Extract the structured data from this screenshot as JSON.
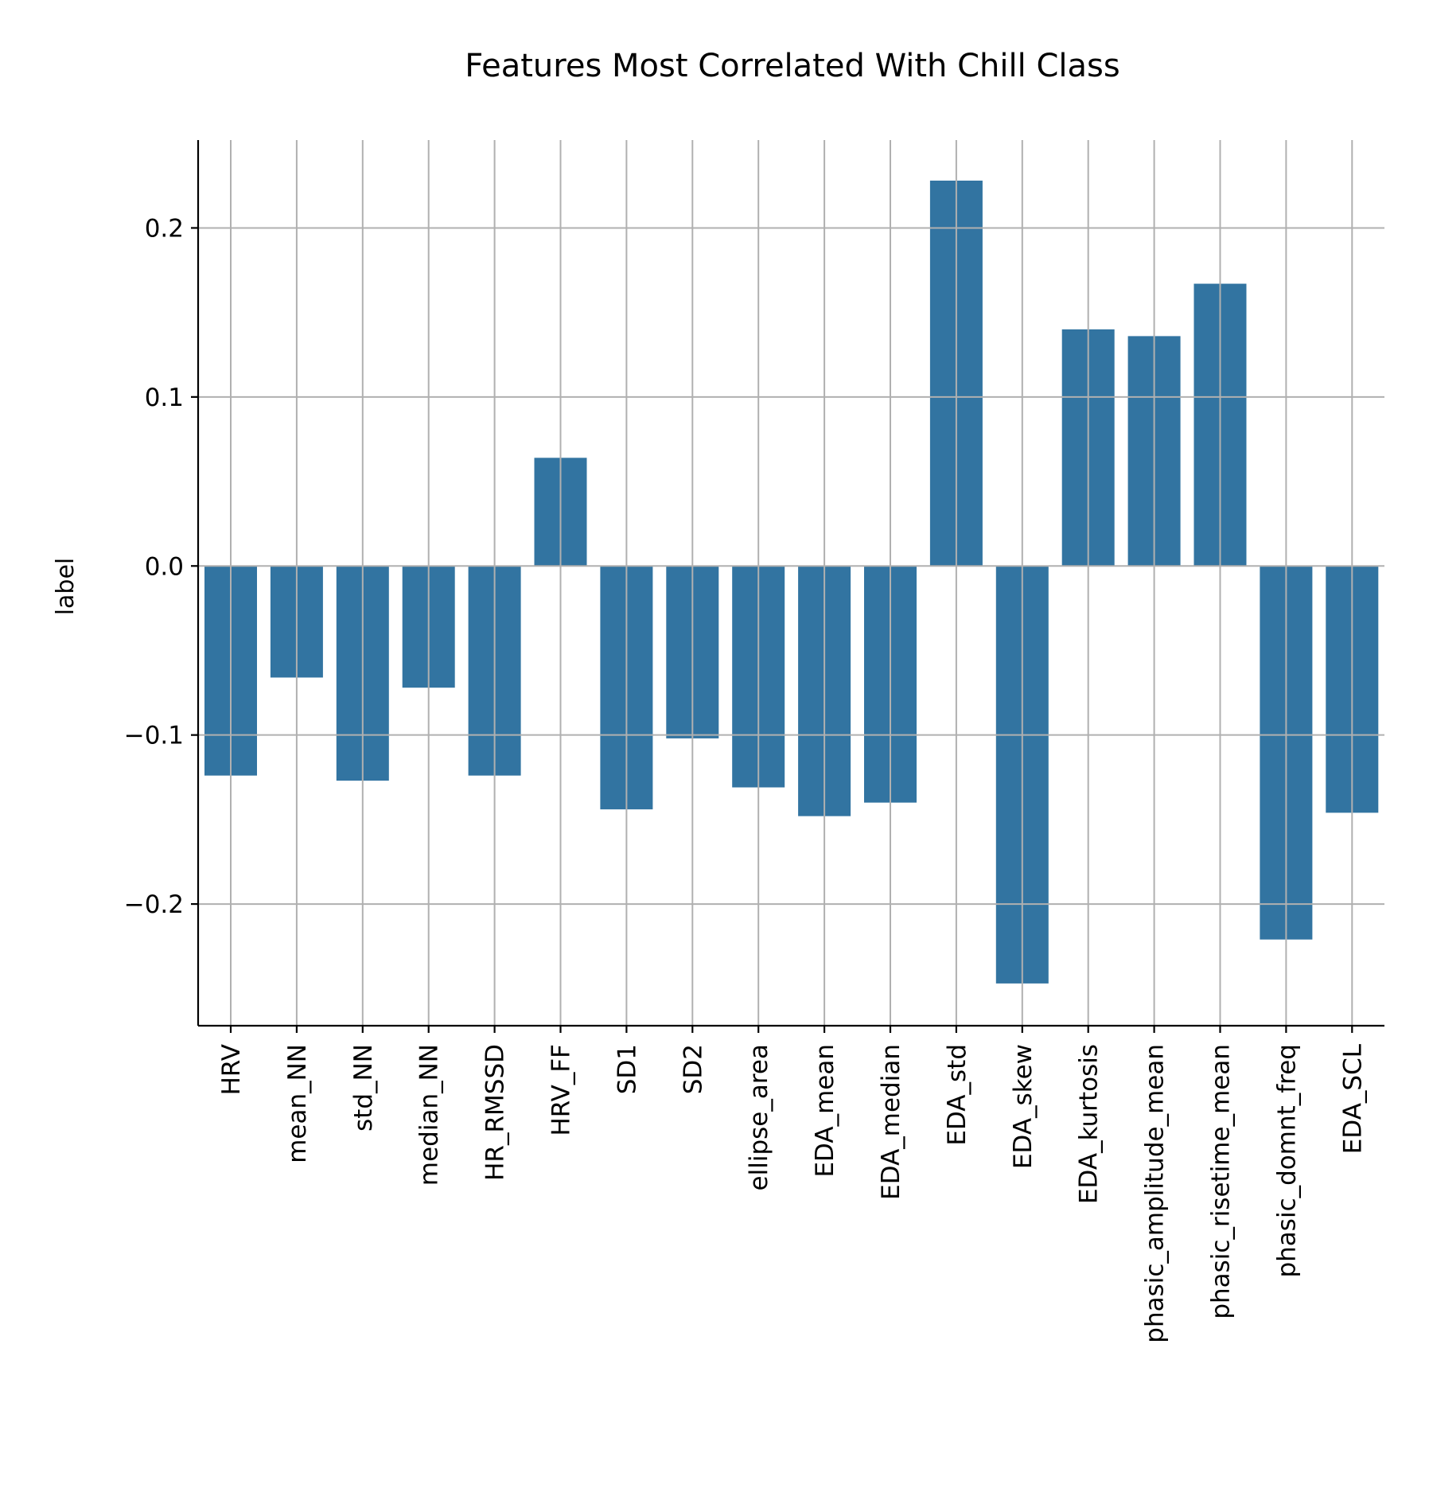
{
  "chart_data": {
    "type": "bar",
    "title": "Features Most Correlated With Chill Class",
    "xlabel": "",
    "ylabel": "label",
    "categories": [
      "HRV",
      "mean_NN",
      "std_NN",
      "median_NN",
      "HR_RMSSD",
      "HRV_FF",
      "SD1",
      "SD2",
      "ellipse_area",
      "EDA_mean",
      "EDA_median",
      "EDA_std",
      "EDA_skew",
      "EDA_kurtosis",
      "phasic_amplitude_mean",
      "phasic_risetime_mean",
      "phasic_domnt_freq",
      "EDA_SCL"
    ],
    "values": [
      -0.124,
      -0.066,
      -0.127,
      -0.072,
      -0.124,
      0.064,
      -0.144,
      -0.102,
      -0.131,
      -0.148,
      -0.14,
      0.228,
      -0.247,
      0.14,
      0.136,
      0.167,
      -0.221,
      -0.146
    ],
    "ylim": [
      -0.272,
      0.252
    ],
    "yticks": [
      -0.2,
      -0.1,
      0.0,
      0.1,
      0.2
    ],
    "ytick_labels": [
      "−0.2",
      "−0.1",
      "0.0",
      "0.1",
      "0.2"
    ],
    "grid": true,
    "bar_color": "#3274a1"
  }
}
